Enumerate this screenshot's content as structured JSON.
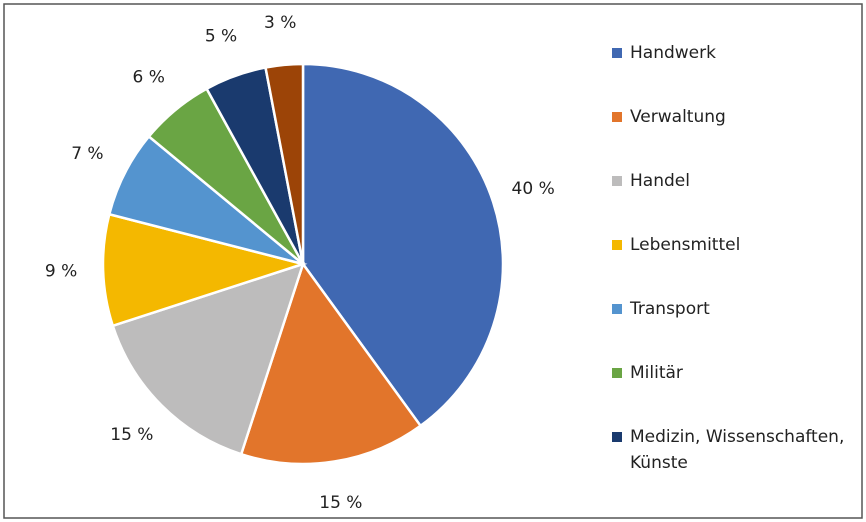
{
  "chart_data": {
    "type": "pie",
    "categories": [
      "Handwerk",
      "Verwaltung",
      "Handel",
      "Lebensmittel",
      "Transport",
      "Militär",
      "Medizin, Wissenschaften, Künste",
      null
    ],
    "values": [
      40,
      15,
      15,
      9,
      7,
      6,
      5,
      3
    ],
    "value_labels": [
      "40 %",
      "15 %",
      "15 %",
      "9 %",
      "7 %",
      "6 %",
      "5 %",
      "3 %"
    ],
    "colors": [
      "#4068b2",
      "#e2752b",
      "#bdbcbc",
      "#f4b800",
      "#5494cf",
      "#6aa544",
      "#1a3a6e",
      "#9c4407"
    ],
    "legend": "right"
  }
}
